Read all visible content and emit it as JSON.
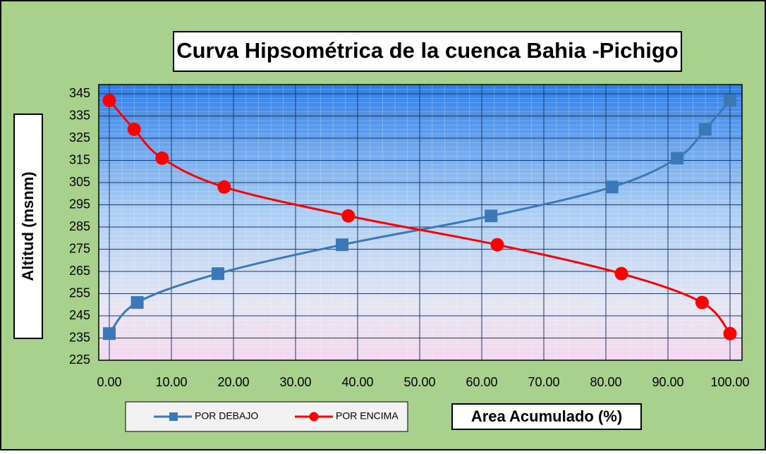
{
  "chart_data": {
    "type": "line",
    "title": "Curva Hipsométrica de la cuenca Bahia -Pichigo",
    "x_label": "Area Acumulado (%)",
    "y_label": "Altitud (msnm)",
    "xlim": [
      0,
      100
    ],
    "ylim": [
      225,
      345
    ],
    "xticks": [
      {
        "value": 0,
        "label": "0.00"
      },
      {
        "value": 10,
        "label": "10.00"
      },
      {
        "value": 20,
        "label": "20.00"
      },
      {
        "value": 30,
        "label": "30.00"
      },
      {
        "value": 40,
        "label": "40.00"
      },
      {
        "value": 50,
        "label": "50.00"
      },
      {
        "value": 60,
        "label": "60.00"
      },
      {
        "value": 70,
        "label": "70.00"
      },
      {
        "value": 80,
        "label": "80.00"
      },
      {
        "value": 90,
        "label": "90.00"
      },
      {
        "value": 100,
        "label": "100.00"
      }
    ],
    "yticks": [
      225,
      235,
      245,
      255,
      265,
      275,
      285,
      295,
      305,
      315,
      325,
      335,
      345
    ],
    "grid": true,
    "legend": "bottom-left",
    "series": [
      {
        "name": "POR DEBAJO",
        "color": "#3a78b8",
        "marker": "square",
        "x": [
          0,
          4.5,
          17.5,
          37.5,
          61.5,
          81,
          91.5,
          96,
          100
        ],
        "values": [
          237,
          251,
          264,
          277,
          290,
          303,
          316,
          329,
          342
        ]
      },
      {
        "name": "POR ENCIMA",
        "color": "#ff0000",
        "marker": "circle",
        "x": [
          0,
          4,
          8.5,
          18.5,
          38.5,
          62.5,
          82.5,
          95.5,
          100
        ],
        "values": [
          342,
          329,
          316,
          303,
          290,
          277,
          264,
          251,
          237
        ]
      }
    ]
  }
}
